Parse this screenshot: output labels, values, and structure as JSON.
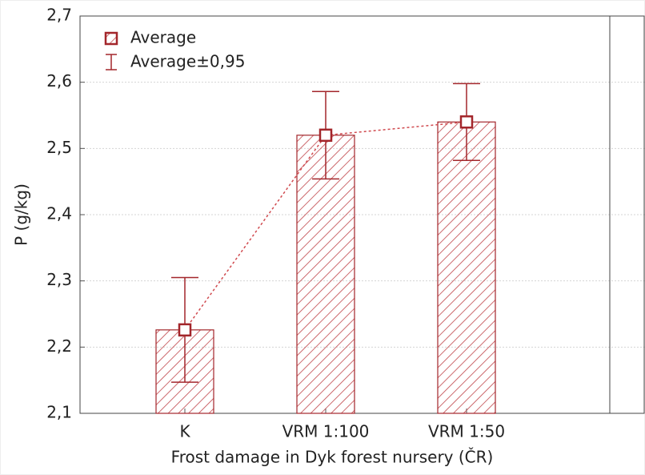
{
  "chart_data": {
    "type": "bar",
    "x_label": "Frost damage in Dyk forest nursery (ČR)",
    "y_label": "P (g/kg)",
    "categories": [
      "K",
      "VRM 1:100",
      "VRM 1:50"
    ],
    "series": [
      {
        "name": "Average",
        "color": "#a3262b",
        "values": [
          2.226,
          2.52,
          2.54
        ]
      }
    ],
    "errors": {
      "name": "Average±0,95",
      "values": [
        0.079,
        0.066,
        0.058
      ]
    },
    "ylim": [
      2.1,
      2.7
    ],
    "yticks": [
      {
        "value": 2.1,
        "label": "2,1"
      },
      {
        "value": 2.2,
        "label": "2,2"
      },
      {
        "value": 2.3,
        "label": "2,3"
      },
      {
        "value": 2.4,
        "label": "2,4"
      },
      {
        "value": 2.5,
        "label": "2,5"
      },
      {
        "value": 2.6,
        "label": "2,6"
      },
      {
        "value": 2.7,
        "label": "2,7"
      }
    ],
    "grid": true,
    "legend": "upper left"
  }
}
